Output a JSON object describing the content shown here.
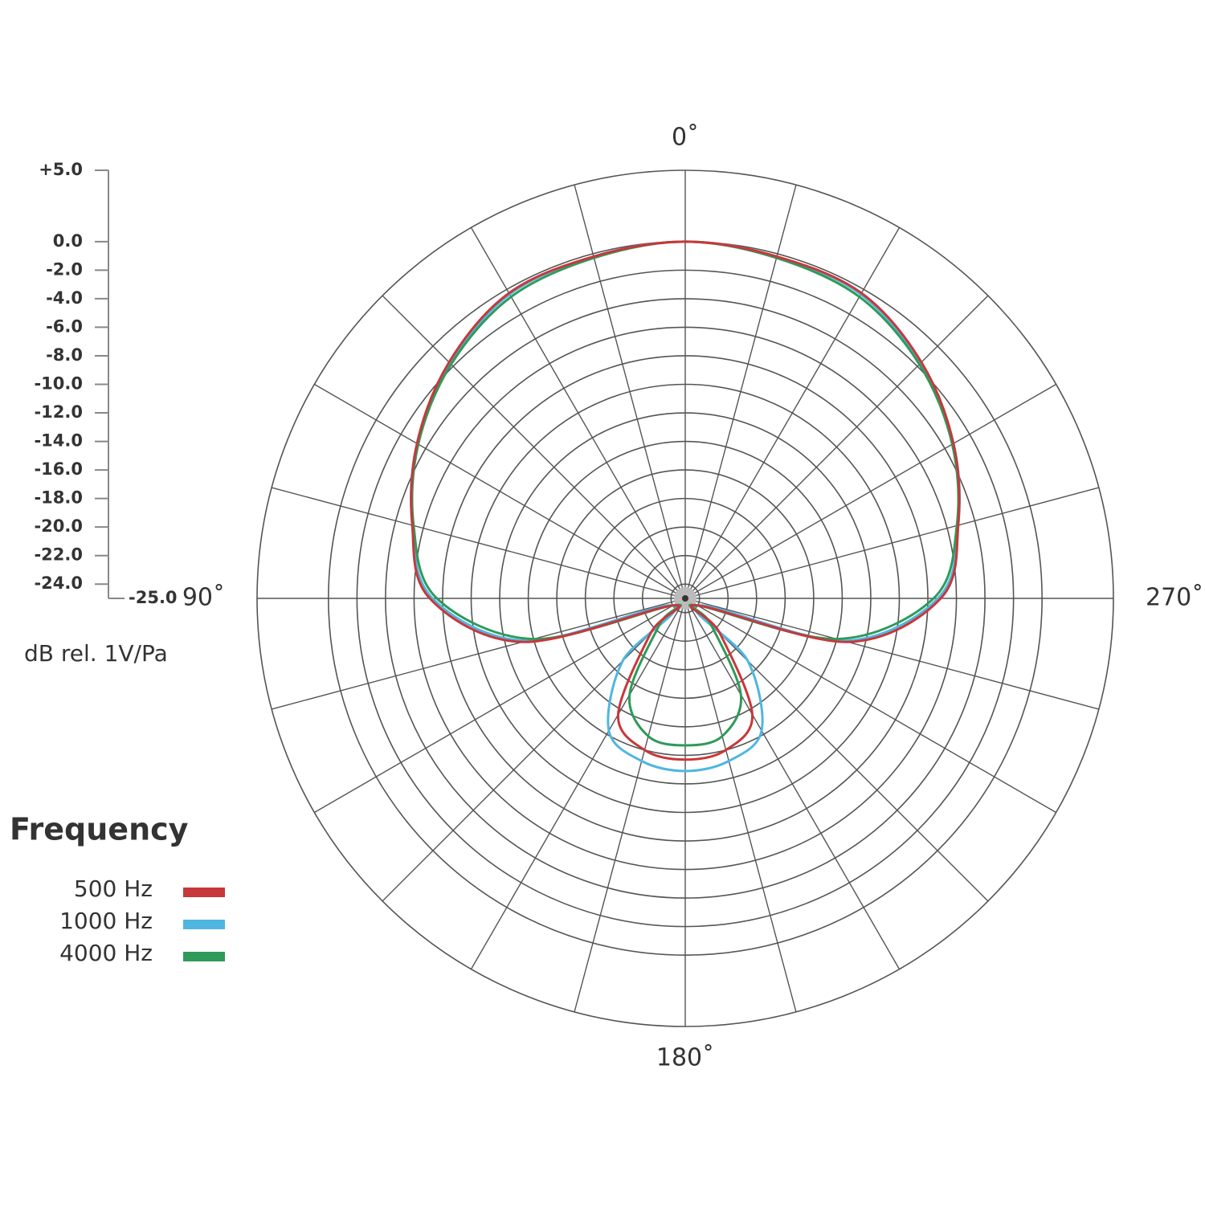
{
  "chart_data": {
    "type": "polar",
    "rlabel": "dB rel. 1V/Pa",
    "legend_title": "Frequency",
    "rlim": [
      -25,
      5
    ],
    "rticks": [
      {
        "value": 5,
        "label": "+5.0"
      },
      {
        "value": 0,
        "label": "0.0"
      },
      {
        "value": -2,
        "label": "-2.0"
      },
      {
        "value": -4,
        "label": "-4.0"
      },
      {
        "value": -6,
        "label": "-6.0"
      },
      {
        "value": -8,
        "label": "-8.0"
      },
      {
        "value": -10,
        "label": "-10.0"
      },
      {
        "value": -12,
        "label": "-12.0"
      },
      {
        "value": -14,
        "label": "-14.0"
      },
      {
        "value": -16,
        "label": "-16.0"
      },
      {
        "value": -18,
        "label": "-18.0"
      },
      {
        "value": -20,
        "label": "-20.0"
      },
      {
        "value": -22,
        "label": "-22.0"
      },
      {
        "value": -24,
        "label": "-24.0"
      },
      {
        "value": -25,
        "label": "-25.0"
      }
    ],
    "thetaticks": [
      {
        "value": 0,
        "label": "0˚"
      },
      {
        "value": 90,
        "label": "90˚"
      },
      {
        "value": 180,
        "label": "180˚"
      },
      {
        "value": 270,
        "label": "270˚"
      }
    ],
    "direction": "counterclockwise",
    "zero": "top",
    "grid": true,
    "theta": [
      0,
      15,
      30,
      45,
      60,
      75,
      90,
      105,
      120,
      135,
      150,
      165,
      180,
      195,
      210,
      225,
      240,
      255,
      270,
      285,
      300,
      315,
      330,
      345
    ],
    "series": [
      {
        "name": "1000 Hz",
        "color": "#4fb6e0",
        "values": [
          0,
          -0.2,
          -0.4,
          -1.7,
          -3.3,
          -5.2,
          -7.3,
          -13.5,
          -24,
          -18.8,
          -14.3,
          -13.2,
          -12.9,
          -13.2,
          -14.3,
          -18.8,
          -24,
          -13.5,
          -7.3,
          -5.2,
          -3.3,
          -1.7,
          -0.4,
          -0.2
        ]
      },
      {
        "name": "4000 Hz",
        "color": "#2f9a5a",
        "values": [
          0,
          -0.3,
          -0.6,
          -1.8,
          -3.4,
          -5.3,
          -7.6,
          -14,
          -24,
          -22.5,
          -17.2,
          -15,
          -14.7,
          -15,
          -17.2,
          -22.5,
          -24,
          -14,
          -7.6,
          -5.3,
          -3.4,
          -1.8,
          -0.6,
          -0.3
        ]
      },
      {
        "name": "500 Hz",
        "color": "#c8373a",
        "values": [
          0,
          -0.2,
          -0.3,
          -1.6,
          -3.3,
          -5.2,
          -7.1,
          -13.2,
          -24,
          -21.6,
          -15.6,
          -14,
          -13.7,
          -14,
          -15.6,
          -21.6,
          -24,
          -13.2,
          -7.1,
          -5.2,
          -3.3,
          -1.6,
          -0.3,
          -0.2
        ]
      }
    ],
    "legend_order": [
      2,
      0,
      1
    ]
  }
}
